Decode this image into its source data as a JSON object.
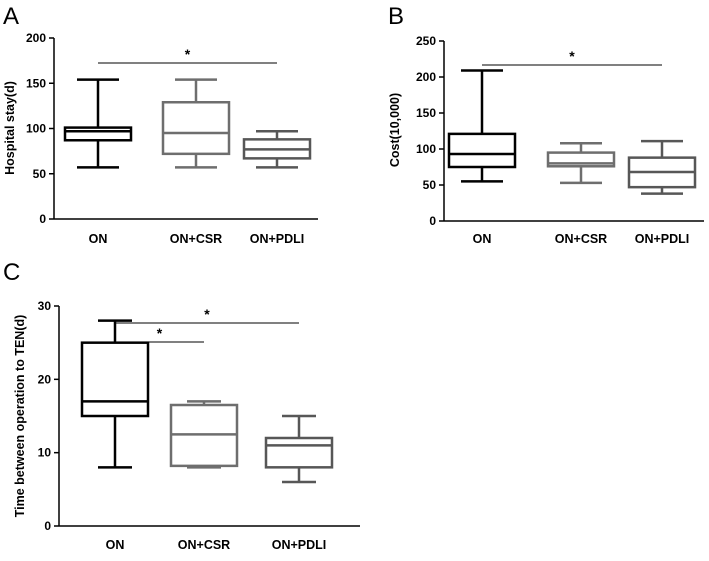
{
  "chart_data": [
    {
      "panel": "A",
      "type": "boxplot",
      "ylabel": "Hospital stay(d)",
      "ylim": [
        0,
        200
      ],
      "yticks": [
        0,
        50,
        100,
        150,
        200
      ],
      "categories": [
        "ON",
        "ON+CSR",
        "ON+PDLI"
      ],
      "colors": [
        "#000000",
        "#6e6e6e",
        "#575757"
      ],
      "boxes": [
        {
          "min": 57,
          "q1": 87,
          "median": 97,
          "q3": 101,
          "max": 154
        },
        {
          "min": 57,
          "q1": 72,
          "median": 95,
          "q3": 129,
          "max": 154
        },
        {
          "min": 57,
          "q1": 67,
          "median": 77,
          "q3": 88,
          "max": 97
        }
      ],
      "significance": [
        {
          "from": 0,
          "to": 2,
          "label": "*"
        }
      ]
    },
    {
      "panel": "B",
      "type": "boxplot",
      "ylabel": "Cost(10,000)",
      "ylim": [
        0,
        250
      ],
      "yticks": [
        0,
        50,
        100,
        150,
        200,
        250
      ],
      "categories": [
        "ON",
        "ON+CSR",
        "ON+PDLI"
      ],
      "colors": [
        "#000000",
        "#6e6e6e",
        "#575757"
      ],
      "boxes": [
        {
          "min": 55,
          "q1": 75,
          "median": 93,
          "q3": 121,
          "max": 209
        },
        {
          "min": 53,
          "q1": 76,
          "median": 80,
          "q3": 95,
          "max": 108
        },
        {
          "min": 38,
          "q1": 47,
          "median": 68,
          "q3": 88,
          "max": 111
        }
      ],
      "significance": [
        {
          "from": 0,
          "to": 2,
          "label": "*"
        }
      ]
    },
    {
      "panel": "C",
      "type": "boxplot",
      "ylabel": "Time between operation to TEN(d)",
      "ylim": [
        0,
        30
      ],
      "yticks": [
        0,
        10,
        20,
        30
      ],
      "categories": [
        "ON",
        "ON+CSR",
        "ON+PDLI"
      ],
      "colors": [
        "#000000",
        "#6e6e6e",
        "#575757"
      ],
      "boxes": [
        {
          "min": 8,
          "q1": 15,
          "median": 17,
          "q3": 25,
          "max": 28
        },
        {
          "min": 8,
          "q1": 8.2,
          "median": 12.5,
          "q3": 16.5,
          "max": 17
        },
        {
          "min": 6,
          "q1": 8,
          "median": 11,
          "q3": 12,
          "max": 15
        }
      ],
      "significance": [
        {
          "from": 0,
          "to": 1,
          "label": "*"
        },
        {
          "from": 0,
          "to": 2,
          "label": "*"
        }
      ]
    }
  ]
}
